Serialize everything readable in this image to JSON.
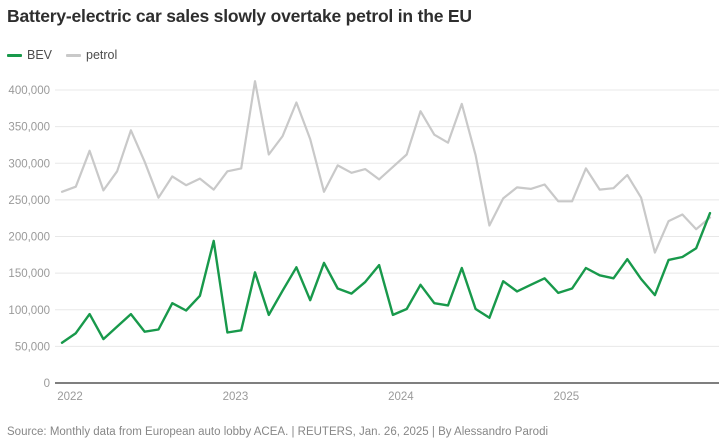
{
  "title": "Battery-electric car sales slowly overtake petrol in the EU",
  "legend": [
    {
      "label": "BEV",
      "color": "#18994b"
    },
    {
      "label": "petrol",
      "color": "#c9c9c9"
    }
  ],
  "footer": {
    "text": "Source: Monthly data from European auto lobby ACEA. | REUTERS, Jan. 26, 2025 | By Alessandro Parodi"
  },
  "colors": {
    "background": "#ffffff",
    "grid": "#e8e8e8",
    "baseline": "#555555",
    "axis_text": "#9a9a9a",
    "title_text": "#2e2e2e"
  },
  "chart_data": {
    "type": "line",
    "title": "Battery-electric car sales slowly overtake petrol in the EU",
    "x_unit": "month",
    "x_start": "2022-01",
    "x_end": "2025-12",
    "x_tick_labels": [
      "2022",
      "2023",
      "2024",
      "2025"
    ],
    "x_tick_month_index": [
      0,
      12,
      24,
      36
    ],
    "y_ticks": [
      0,
      50000,
      100000,
      150000,
      200000,
      250000,
      300000,
      350000,
      400000
    ],
    "ylim": [
      0,
      400000
    ],
    "grid": "horizontal",
    "legend_position": "top-left",
    "series": [
      {
        "name": "petrol",
        "color": "#c9c9c9",
        "values": [
          261000,
          268000,
          317000,
          263000,
          289000,
          345000,
          302000,
          253000,
          282000,
          270000,
          279000,
          264000,
          289000,
          293000,
          412000,
          312000,
          337000,
          383000,
          333000,
          261000,
          297000,
          287000,
          292000,
          278000,
          295000,
          312000,
          371000,
          339000,
          328000,
          381000,
          311000,
          215000,
          252000,
          267000,
          265000,
          271000,
          248000,
          248000,
          293000,
          264000,
          266000,
          284000,
          253000,
          178000,
          221000,
          230000,
          210000,
          226000
        ]
      },
      {
        "name": "BEV",
        "color": "#18994b",
        "values": [
          55000,
          68000,
          94000,
          60000,
          77000,
          94000,
          70000,
          73000,
          109000,
          99000,
          119000,
          194000,
          69000,
          72000,
          151000,
          93000,
          126000,
          158000,
          113000,
          164000,
          129000,
          122000,
          138000,
          161000,
          93000,
          101000,
          134000,
          109000,
          106000,
          157000,
          101000,
          89000,
          139000,
          125000,
          134000,
          143000,
          123000,
          129000,
          157000,
          147000,
          143000,
          169000,
          142000,
          120000,
          168000,
          172000,
          184000,
          232000
        ]
      }
    ]
  }
}
